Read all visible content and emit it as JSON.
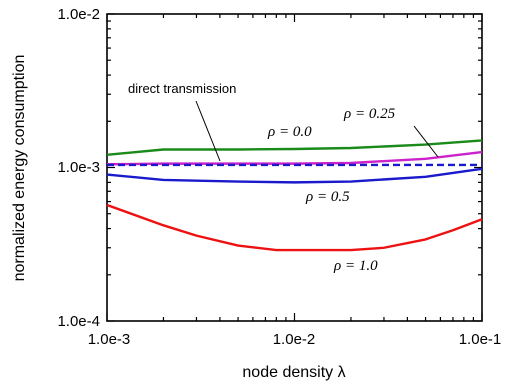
{
  "chart_data": {
    "type": "line",
    "xlabel": "node density λ",
    "ylabel": "normalized energy consumption",
    "xscale": "log",
    "yscale": "log",
    "xlim": [
      0.001,
      0.1
    ],
    "ylim": [
      0.0001,
      0.01
    ],
    "xticks": [
      "1.0e-3",
      "1.0e-2",
      "1.0e-1"
    ],
    "yticks": [
      "1.0e-4",
      "1.0e-3",
      "1.0e-2"
    ],
    "grid": false,
    "legend": "none",
    "series": [
      {
        "name": "ρ = 0.0",
        "color": "#1a8a1a",
        "style": "solid",
        "x": [
          0.001,
          0.002,
          0.005,
          0.01,
          0.02,
          0.05,
          0.1
        ],
        "y": [
          0.00121,
          0.00131,
          0.00131,
          0.00132,
          0.00134,
          0.00141,
          0.0015
        ]
      },
      {
        "name": "ρ = 0.25",
        "color": "#cc22cc",
        "style": "solid",
        "x": [
          0.001,
          0.002,
          0.005,
          0.01,
          0.02,
          0.05,
          0.1
        ],
        "y": [
          0.00105,
          0.00106,
          0.00106,
          0.00106,
          0.00107,
          0.00114,
          0.00126
        ]
      },
      {
        "name": "direct transmission",
        "color": "#1a1acc",
        "style": "dashed",
        "x": [
          0.001,
          0.1
        ],
        "y": [
          0.00104,
          0.00104
        ]
      },
      {
        "name": "ρ = 0.5",
        "color": "#1a1acc",
        "style": "solid",
        "x": [
          0.001,
          0.002,
          0.005,
          0.01,
          0.02,
          0.05,
          0.1
        ],
        "y": [
          0.0009,
          0.00083,
          0.00081,
          0.0008,
          0.00081,
          0.00087,
          0.00098
        ]
      },
      {
        "name": "ρ = 1.0",
        "color": "#ee1111",
        "style": "solid",
        "x": [
          0.001,
          0.002,
          0.003,
          0.005,
          0.008,
          0.01,
          0.02,
          0.03,
          0.05,
          0.07,
          0.1
        ],
        "y": [
          0.00057,
          0.00042,
          0.00036,
          0.00031,
          0.00029,
          0.00029,
          0.00029,
          0.0003,
          0.00034,
          0.00039,
          0.00046
        ]
      }
    ],
    "annotations": [
      {
        "text": "direct transmission",
        "series": "direct transmission"
      },
      {
        "text": "ρ = 0.0",
        "series": "ρ = 0.0"
      },
      {
        "text": "ρ = 0.25",
        "series": "ρ = 0.25"
      },
      {
        "text": "ρ = 0.5",
        "series": "ρ = 0.5"
      },
      {
        "text": "ρ = 1.0",
        "series": "ρ = 1.0"
      }
    ]
  }
}
